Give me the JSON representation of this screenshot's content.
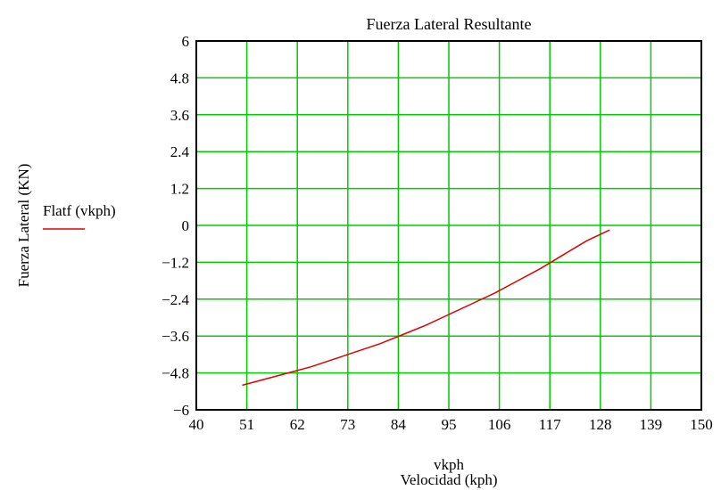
{
  "chart_data": {
    "type": "line",
    "title": "Fuerza Lateral Resultante",
    "xlabel": "vkph",
    "xlabel2": "Velocidad (kph)",
    "ylabel": "Fuerza Lateral (KN)",
    "xlim": [
      40,
      150
    ],
    "ylim": [
      -6,
      6
    ],
    "x_ticks": [
      "40",
      "51",
      "62",
      "73",
      "84",
      "95",
      "106",
      "117",
      "128",
      "139",
      "150"
    ],
    "y_ticks": [
      "6",
      "4.8",
      "3.6",
      "2.4",
      "1.2",
      "0",
      "-1.2",
      "-2.4",
      "-3.6",
      "-4.8",
      "-6"
    ],
    "grid": true,
    "grid_color": "#00cc00",
    "legend_position": "left",
    "series": [
      {
        "name": "Flatf (vkph)",
        "color": "#e00000",
        "x": [
          50,
          55,
          60,
          65,
          70,
          75,
          80,
          85,
          90,
          95,
          100,
          105,
          110,
          115,
          120,
          125,
          130
        ],
        "y": [
          -5.2,
          -5.0,
          -4.8,
          -4.6,
          -4.35,
          -4.1,
          -3.85,
          -3.55,
          -3.25,
          -2.9,
          -2.55,
          -2.2,
          -1.8,
          -1.4,
          -0.95,
          -0.5,
          -0.15
        ]
      }
    ]
  }
}
